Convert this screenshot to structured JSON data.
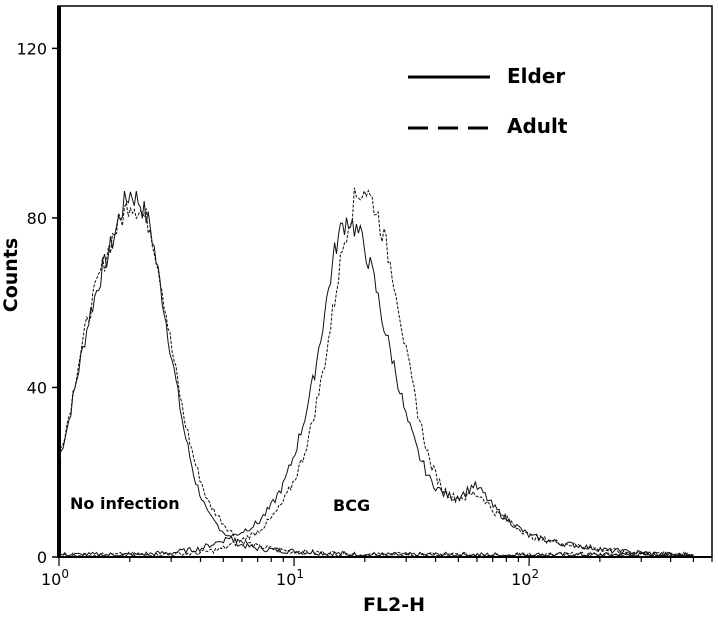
{
  "chart_data": {
    "type": "line",
    "title": "",
    "xlabel": "FL2-H",
    "ylabel": "Counts",
    "x_scale": "log",
    "xlim": [
      1,
      600
    ],
    "ylim": [
      0,
      130
    ],
    "x_ticks": [
      {
        "value": 1,
        "base": "10",
        "exp": "0"
      },
      {
        "value": 10,
        "base": "10",
        "exp": "1"
      },
      {
        "value": 100,
        "base": "10",
        "exp": "2"
      }
    ],
    "y_ticks": [
      {
        "value": 0,
        "label": "0"
      },
      {
        "value": 40,
        "label": "40"
      },
      {
        "value": 80,
        "label": "80"
      },
      {
        "value": 120,
        "label": "120"
      }
    ],
    "grid": false,
    "legend_position": "top-right",
    "annotations": [
      {
        "text": "No infection",
        "x": 1.05,
        "y": 10
      },
      {
        "text": "BCG",
        "x": 11.0,
        "y": 10
      }
    ],
    "series": [
      {
        "name": "Elder",
        "group": "No infection",
        "style": "solid",
        "x": [
          1,
          1.1,
          1.2,
          1.35,
          1.5,
          1.7,
          1.85,
          2.0,
          2.2,
          2.45,
          2.7,
          3.0,
          3.4,
          3.8,
          4.3,
          5.0,
          5.8,
          7.0,
          9.0,
          13,
          20,
          50,
          100,
          200,
          500
        ],
        "y": [
          23,
          32,
          43,
          57,
          66,
          75,
          82,
          86,
          84,
          78,
          64,
          48,
          30,
          18,
          10,
          6,
          3,
          2,
          1.5,
          1,
          0.5,
          0.5,
          0.5,
          0.5,
          0.5
        ]
      },
      {
        "name": "Adult",
        "group": "No infection",
        "style": "dashed",
        "x": [
          1,
          1.1,
          1.2,
          1.35,
          1.5,
          1.7,
          1.85,
          2.0,
          2.2,
          2.45,
          2.7,
          3.0,
          3.4,
          3.8,
          4.3,
          5.0,
          5.8,
          7.0,
          9.0,
          13,
          20,
          50,
          100,
          200,
          500
        ],
        "y": [
          24,
          33,
          45,
          58,
          67,
          76,
          80,
          84,
          82,
          78,
          66,
          50,
          33,
          22,
          13,
          8,
          4,
          2.5,
          1.5,
          1,
          0.5,
          0.5,
          0.5,
          0.5,
          0.5
        ]
      },
      {
        "name": "Elder",
        "group": "BCG",
        "style": "solid",
        "x": [
          1,
          2,
          3,
          4,
          5,
          6,
          7,
          8,
          9,
          10,
          11,
          12,
          13,
          14,
          15,
          16,
          17,
          18,
          19,
          20,
          22,
          24,
          27,
          30,
          34,
          38,
          43,
          48,
          53,
          58,
          64,
          70,
          80,
          90,
          100,
          130,
          170,
          220,
          300,
          400,
          500
        ],
        "y": [
          0.5,
          0.5,
          1,
          2,
          4,
          6,
          8,
          12,
          17,
          24,
          32,
          41,
          52,
          63,
          73,
          78,
          80,
          78,
          76,
          73,
          65,
          55,
          44,
          33,
          24,
          18,
          15,
          14,
          15,
          17,
          15,
          12,
          9,
          7,
          5,
          3.5,
          2.5,
          1.5,
          1,
          0.5,
          0.5
        ]
      },
      {
        "name": "Adult",
        "group": "BCG",
        "style": "dashed",
        "x": [
          1,
          2,
          3,
          4,
          5,
          6,
          7,
          8,
          9,
          10,
          11,
          12,
          13,
          14,
          15,
          16,
          17,
          18,
          19,
          20,
          22,
          24,
          27,
          30,
          34,
          38,
          43,
          48,
          53,
          58,
          64,
          70,
          80,
          90,
          100,
          130,
          170,
          220,
          300,
          400,
          500
        ],
        "y": [
          0.5,
          0.5,
          0.5,
          1,
          2,
          4,
          6,
          9,
          13,
          18,
          24,
          32,
          41,
          51,
          62,
          72,
          79,
          84,
          86,
          87,
          83,
          76,
          64,
          48,
          33,
          22,
          16,
          14,
          14,
          15,
          14,
          11,
          9,
          7,
          5,
          3.5,
          2.5,
          1.5,
          1,
          0.5,
          0.5
        ]
      }
    ]
  }
}
